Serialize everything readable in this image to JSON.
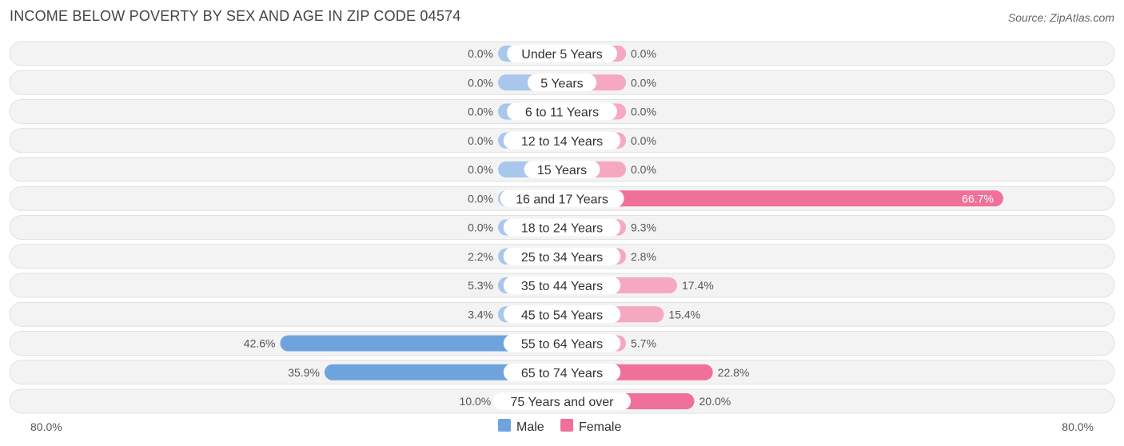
{
  "chart_data": {
    "type": "bar",
    "orientation": "horizontal-diverging",
    "title": "INCOME BELOW POVERTY BY SEX AND AGE IN ZIP CODE 04574",
    "source": "Source: ZipAtlas.com",
    "categories": [
      "Under 5 Years",
      "5 Years",
      "6 to 11 Years",
      "12 to 14 Years",
      "15 Years",
      "16 and 17 Years",
      "18 to 24 Years",
      "25 to 34 Years",
      "35 to 44 Years",
      "45 to 54 Years",
      "55 to 64 Years",
      "65 to 74 Years",
      "75 Years and over"
    ],
    "series": [
      {
        "name": "Male",
        "values": [
          0.0,
          0.0,
          0.0,
          0.0,
          0.0,
          0.0,
          0.0,
          2.2,
          5.3,
          3.4,
          42.6,
          35.9,
          10.0
        ],
        "labels": [
          "0.0%",
          "0.0%",
          "0.0%",
          "0.0%",
          "0.0%",
          "0.0%",
          "0.0%",
          "2.2%",
          "5.3%",
          "3.4%",
          "42.6%",
          "35.9%",
          "10.0%"
        ],
        "color_light": "#a9c7ea",
        "color_strong": "#6fa3dd"
      },
      {
        "name": "Female",
        "values": [
          0.0,
          0.0,
          0.0,
          0.0,
          0.0,
          66.7,
          9.3,
          2.8,
          17.4,
          15.4,
          5.7,
          22.8,
          20.0
        ],
        "labels": [
          "0.0%",
          "0.0%",
          "0.0%",
          "0.0%",
          "0.0%",
          "66.7%",
          "9.3%",
          "2.8%",
          "17.4%",
          "15.4%",
          "5.7%",
          "22.8%",
          "20.0%"
        ],
        "color_light": "#f6a8c0",
        "color_strong": "#f07099"
      }
    ],
    "xlim": [
      -80,
      80
    ],
    "axis_left_label": "80.0%",
    "axis_right_label": "80.0%",
    "legend": [
      {
        "name": "Male",
        "color": "#6fa3dd"
      },
      {
        "name": "Female",
        "color": "#f07099"
      }
    ],
    "legend_position": "bottom-center"
  }
}
